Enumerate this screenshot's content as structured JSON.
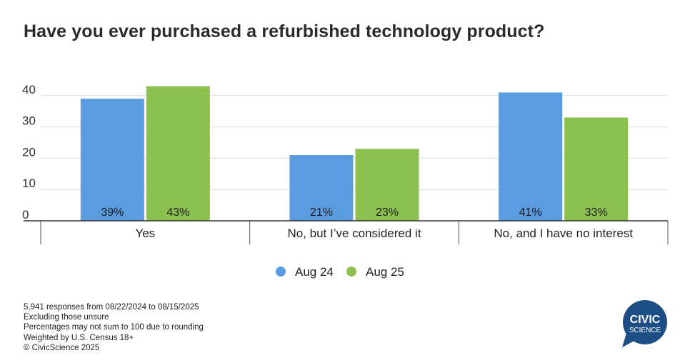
{
  "chart_data": {
    "type": "bar",
    "title": "Have you ever purchased a refurbished technology product?",
    "categories": [
      "Yes",
      "No, but I’ve considered it",
      "No, and I have no interest"
    ],
    "series": [
      {
        "name": "Aug 24",
        "color": "#5b9be0",
        "values": [
          39,
          21,
          41
        ],
        "labels": [
          "39%",
          "21%",
          "41%"
        ]
      },
      {
        "name": "Aug 25",
        "color": "#8cc152",
        "values": [
          43,
          23,
          33
        ],
        "labels": [
          "43%",
          "23%",
          "33%"
        ]
      }
    ],
    "yticks": [
      0,
      10,
      20,
      30,
      40
    ],
    "ylim": [
      0,
      50
    ],
    "grid": true,
    "xlabel": "",
    "ylabel": "",
    "legend": "bottom-center"
  },
  "footnotes": [
    "5,941 responses from 08/22/2024 to 08/15/2025",
    "Excluding those unsure",
    "Percentages may not sum to 100 due to rounding",
    "Weighted by U.S. Census 18+",
    "© CivicScience 2025"
  ],
  "logo": {
    "line1": "CIVIC",
    "line2": "SCIENCE",
    "color": "#1d4f86"
  }
}
